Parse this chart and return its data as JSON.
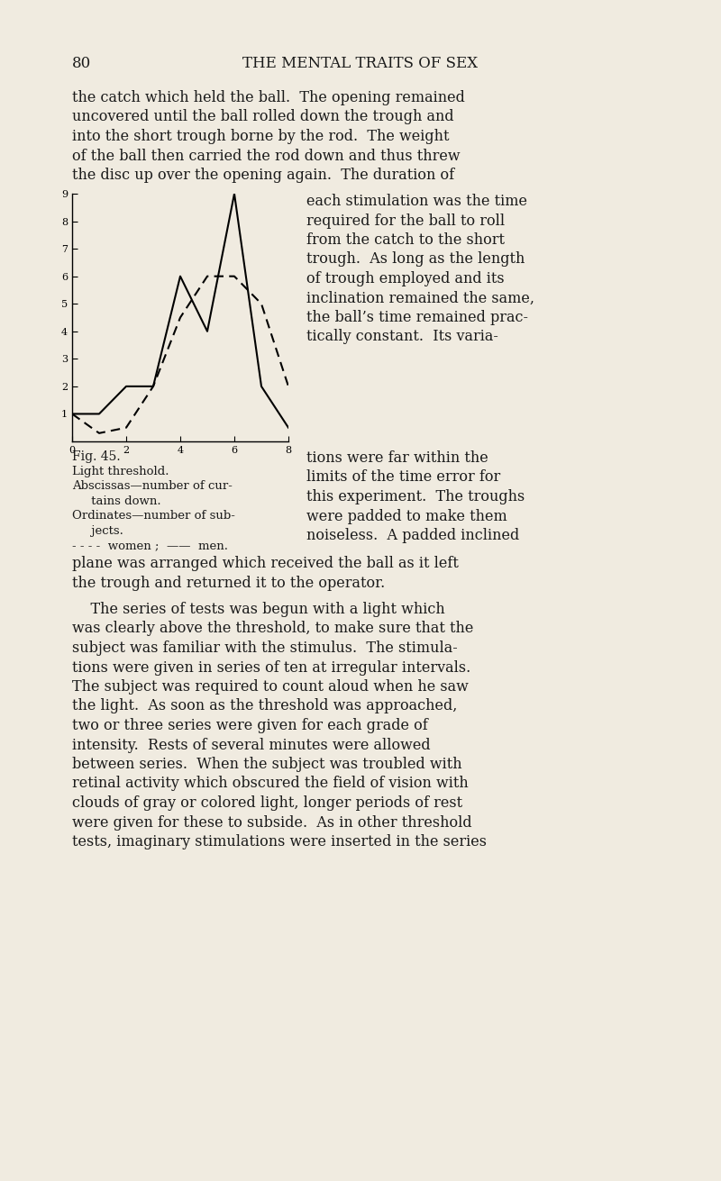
{
  "page_number": "80",
  "header": "THE MENTAL TRAITS OF SEX",
  "background_color": "#f0ebe0",
  "text_color": "#1a1a1a",
  "fig_caption": "Fig. 45.",
  "fig_label1": "Light threshold.",
  "fig_label2a": "Abscissas—number of cur-",
  "fig_label2b": "     tains down.",
  "fig_label3a": "Ordinates—number of sub-",
  "fig_label3b": "     jects.",
  "fig_label4a": "- - - -  women ;",
  "fig_label4b": "——  men.",
  "women_x": [
    0,
    1,
    2,
    3,
    4,
    5,
    6,
    7,
    8
  ],
  "women_y": [
    1.0,
    0.3,
    0.5,
    2.0,
    4.5,
    6.0,
    6.0,
    5.0,
    2.0
  ],
  "men_x": [
    0,
    1,
    2,
    3,
    4,
    5,
    6,
    7,
    8
  ],
  "men_y": [
    1.0,
    1.0,
    2.0,
    2.0,
    6.0,
    4.0,
    9.0,
    2.0,
    0.5
  ],
  "xlim": [
    0,
    8
  ],
  "ylim": [
    0,
    9
  ],
  "xticks": [
    0,
    2,
    4,
    6,
    8
  ],
  "yticks": [
    1,
    2,
    3,
    4,
    5,
    6,
    7,
    8,
    9
  ],
  "paragraph1": "the catch which held the ball.  The opening remained\nuncovered until the ball rolled down the trough and\ninto the short trough borne by the rod.  The weight\nof the ball then carried the rod down and thus threw\nthe disc up over the opening again.  The duration of",
  "paragraph2_right": "each stimulation was the time\nrequired for the ball to roll\nfrom the catch to the short\ntrough.  As long as the length\nof trough employed and its\ninclination remained the same,\nthe ball’s time remained prac-\ntically constant.  Its varia-",
  "paragraph3_right": "tions were far within the\nlimits of the time error for\nthis experiment.  The troughs\nwere padded to make them\nnoiseless.  A padded inclined",
  "paragraph4": "plane was arranged which received the ball as it left\nthe trough and returned it to the operator.",
  "paragraph5": "    The series of tests was begun with a light which\nwas clearly above the threshold, to make sure that the\nsubject was familiar with the stimulus.  The stimula-\ntions were given in series of ten at irregular intervals.\nThe subject was required to count aloud when he saw\nthe light.  As soon as the threshold was approached,\ntwo or three series were given for each grade of\nintensity.  Rests of several minutes were allowed\nbetween series.  When the subject was troubled with\nretinal activity which obscured the field of vision with\nclouds of gray or colored light, longer periods of rest\nwere given for these to subside.  As in other threshold\ntests, imaginary stimulations were inserted in the series"
}
